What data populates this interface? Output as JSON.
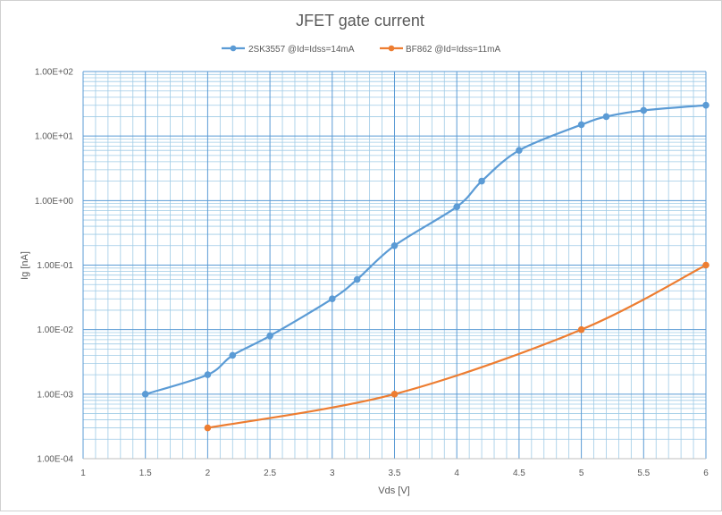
{
  "chart_data": {
    "type": "line",
    "title": "JFET gate current",
    "xlabel": "Vds [V]",
    "ylabel": "Ig [nA]",
    "xlim": [
      1,
      6
    ],
    "ylim": [
      0.0001,
      100
    ],
    "yscale": "log",
    "grid": true,
    "legend_position": "top",
    "x_ticks": [
      1,
      1.5,
      2,
      2.5,
      3,
      3.5,
      4,
      4.5,
      5,
      5.5,
      6
    ],
    "x_tick_labels": [
      "1",
      "1.5",
      "2",
      "2.5",
      "3",
      "3.5",
      "4",
      "4.5",
      "5",
      "5.5",
      "6"
    ],
    "y_ticks": [
      0.0001,
      0.001,
      0.01,
      0.1,
      1,
      10,
      100
    ],
    "y_tick_labels": [
      "1.00E-04",
      "1.00E-03",
      "1.00E-02",
      "1.00E-01",
      "1.00E+00",
      "1.00E+01",
      "1.00E+02"
    ],
    "series": [
      {
        "name": "2SK3557 @Id=Idss=14mA",
        "color": "#5b9bd5",
        "x": [
          1.5,
          2,
          2.2,
          2.5,
          3,
          3.2,
          3.5,
          4,
          4.2,
          4.5,
          5,
          5.2,
          5.5,
          6
        ],
        "y": [
          0.001,
          0.002,
          0.004,
          0.008,
          0.03,
          0.06,
          0.2,
          0.8,
          2,
          6,
          15,
          20,
          25,
          30
        ]
      },
      {
        "name": "BF862 @Id=Idss=11mA",
        "color": "#ed7d31",
        "x": [
          2,
          3.5,
          5,
          6
        ],
        "y": [
          0.0003,
          0.001,
          0.01,
          0.1
        ]
      }
    ]
  }
}
